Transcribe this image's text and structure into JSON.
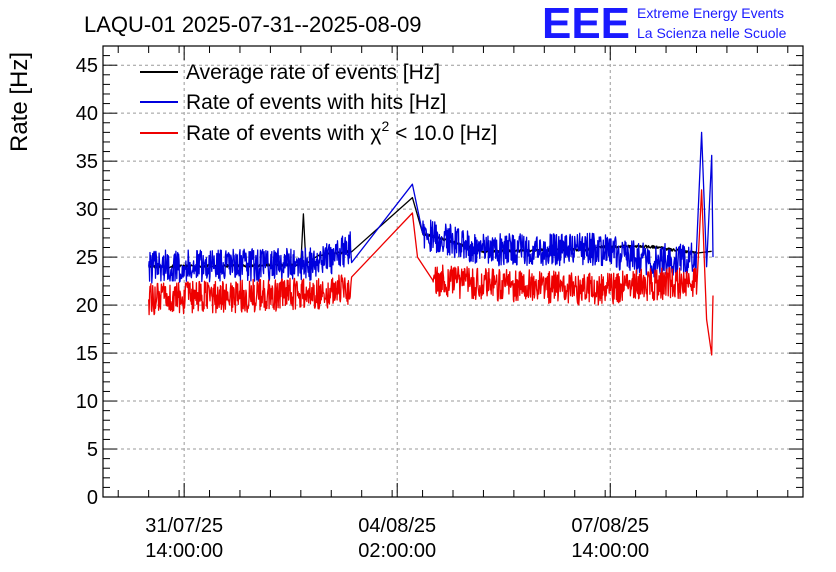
{
  "brand": {
    "logo": "EEE",
    "line1": "Extreme Energy Events",
    "line2": "La Scienza nelle Scuole",
    "color": "#1a1aff"
  },
  "chart_data": {
    "type": "line",
    "title": "LAQU-01 2025-07-31--2025-08-09",
    "ylabel": "Rate [Hz]",
    "xlabel": "",
    "ylim": [
      0,
      47
    ],
    "xlim": [
      "2025-07-30 06:00",
      "2025-08-10 18:00"
    ],
    "grid": true,
    "legend_position": "top-left",
    "y_ticks": [
      0,
      5,
      10,
      15,
      20,
      25,
      30,
      35,
      40,
      45
    ],
    "x_ticks": [
      {
        "at": "2025-07-31 14:00",
        "line1": "31/07/25",
        "line2": "14:00:00"
      },
      {
        "at": "2025-08-04 02:00",
        "line1": "04/08/25",
        "line2": "02:00:00"
      },
      {
        "at": "2025-08-07 14:00",
        "line1": "07/08/25",
        "line2": "14:00:00"
      }
    ],
    "series": [
      {
        "name": "Average rate of events [Hz]",
        "label_main": "Average rate of events [Hz]",
        "color": "#000000",
        "points": [
          [
            "2025-07-31 00:00",
            24.0
          ],
          [
            "2025-08-01 12:00",
            24.1
          ],
          [
            "2025-08-02 12:00",
            24.2
          ],
          [
            "2025-08-02 13:00",
            29.5
          ],
          [
            "2025-08-02 14:00",
            24.3
          ],
          [
            "2025-08-02 19:00",
            25.2
          ],
          [
            "2025-08-03 08:00",
            25.6
          ],
          [
            "2025-08-04 08:00",
            31.2
          ],
          [
            "2025-08-04 12:00",
            27.5
          ],
          [
            "2025-08-05 12:00",
            25.6
          ],
          [
            "2025-08-07 06:00",
            25.8
          ],
          [
            "2025-08-07 10:00",
            26.1
          ],
          [
            "2025-08-08 06:00",
            26.1
          ],
          [
            "2025-08-09 00:00",
            25.4
          ],
          [
            "2025-08-09 06:00",
            25.6
          ]
        ]
      },
      {
        "name": "Rate of events with hits [Hz]",
        "label_main": "Rate of events with hits [Hz]",
        "color": "#0000dd",
        "points": [
          [
            "2025-07-31 00:00",
            24.0
          ],
          [
            "2025-08-02 19:00",
            24.3
          ],
          [
            "2025-08-03 08:00",
            26.0
          ],
          [
            "2025-08-04 08:00",
            32.6
          ],
          [
            "2025-08-04 12:00",
            27.5
          ],
          [
            "2025-08-05 12:00",
            25.8
          ],
          [
            "2025-08-07 10:00",
            25.8
          ],
          [
            "2025-08-08 06:00",
            24.6
          ],
          [
            "2025-08-09 00:00",
            25.0
          ],
          [
            "2025-08-09 02:00",
            38.0
          ],
          [
            "2025-08-09 04:00",
            24.0
          ],
          [
            "2025-08-09 06:00",
            35.6
          ],
          [
            "2025-08-09 06:30",
            25.0
          ]
        ]
      },
      {
        "name": "Rate of events with χ2 < 10.0 [Hz]",
        "label_main": "Rate of events with χ",
        "label_sup": "2",
        "label_rest": " < 10.0 [Hz]",
        "color": "#ee0000",
        "points": [
          [
            "2025-07-31 00:00",
            20.6
          ],
          [
            "2025-08-02 19:00",
            21.2
          ],
          [
            "2025-08-03 08:00",
            21.8
          ],
          [
            "2025-08-04 08:00",
            29.6
          ],
          [
            "2025-08-04 10:00",
            25.0
          ],
          [
            "2025-08-04 16:00",
            22.6
          ],
          [
            "2025-08-05 12:00",
            22.2
          ],
          [
            "2025-08-07 10:00",
            21.6
          ],
          [
            "2025-08-08 06:00",
            22.2
          ],
          [
            "2025-08-09 00:00",
            22.2
          ],
          [
            "2025-08-09 02:00",
            32.0
          ],
          [
            "2025-08-09 04:00",
            18.5
          ],
          [
            "2025-08-09 06:00",
            14.8
          ],
          [
            "2025-08-09 06:30",
            21.0
          ]
        ]
      }
    ]
  }
}
